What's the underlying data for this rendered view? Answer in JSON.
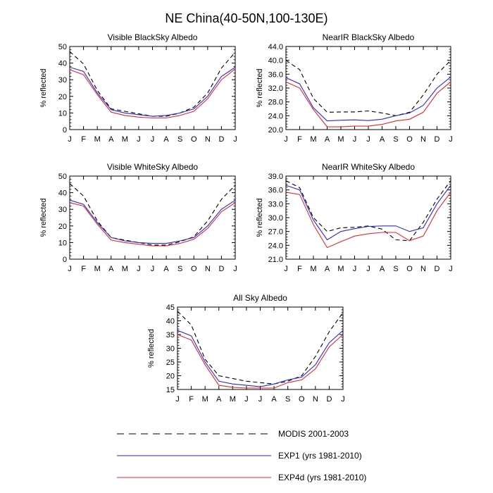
{
  "figure": {
    "title": "NE China(40-50N,100-130E)"
  },
  "legend": [
    {
      "name": "MODIS 2001-2003",
      "color": "#000000",
      "dash": "dashed"
    },
    {
      "name": "EXP1 (yrs 1981-2010)",
      "color": "#2a2ad4",
      "dash": "solid"
    },
    {
      "name": "EXP4d (yrs 1981-2010)",
      "color": "#e8262a",
      "dash": "solid"
    }
  ],
  "chart_data": [
    {
      "type": "line",
      "title": "Visible BlackSky Albedo",
      "ylabel": "% reflected",
      "categories": [
        "J",
        "F",
        "M",
        "A",
        "M",
        "J",
        "J",
        "A",
        "S",
        "O",
        "N",
        "D",
        "J"
      ],
      "ylim": [
        0,
        50
      ],
      "yticks": [
        "0",
        "10",
        "20",
        "30",
        "40",
        "50"
      ],
      "series": [
        {
          "name": "MODIS 2001-2003",
          "values": [
            47.0,
            39.5,
            23.5,
            12.5,
            11.0,
            9.5,
            8.0,
            8.0,
            10.0,
            13.5,
            22.0,
            37.0,
            46.5
          ]
        },
        {
          "name": "EXP1 (yrs 1981-2010)",
          "values": [
            37.5,
            35.0,
            22.0,
            12.0,
            10.0,
            9.0,
            8.0,
            8.5,
            10.0,
            12.5,
            20.0,
            32.0,
            37.5
          ]
        },
        {
          "name": "EXP4d (yrs 1981-2010)",
          "values": [
            36.0,
            33.0,
            21.0,
            10.5,
            8.5,
            7.5,
            7.0,
            7.0,
            8.5,
            11.0,
            18.5,
            30.0,
            36.5
          ]
        }
      ]
    },
    {
      "type": "line",
      "title": "NearIR BlackSky Albedo",
      "ylabel": "% reflected",
      "categories": [
        "J",
        "F",
        "M",
        "A",
        "M",
        "J",
        "J",
        "A",
        "S",
        "O",
        "N",
        "D",
        "J"
      ],
      "ylim": [
        20,
        44
      ],
      "yticks": [
        "20.0",
        "24.0",
        "28.0",
        "32.0",
        "36.0",
        "40.0",
        "44.0"
      ],
      "series": [
        {
          "name": "MODIS 2001-2003",
          "values": [
            40.0,
            37.3,
            29.0,
            25.0,
            25.1,
            25.1,
            25.4,
            24.8,
            24.0,
            25.0,
            30.0,
            36.0,
            40.0
          ]
        },
        {
          "name": "EXP1 (yrs 1981-2010)",
          "values": [
            35.0,
            33.2,
            26.3,
            22.5,
            22.7,
            22.8,
            22.6,
            23.0,
            24.0,
            24.8,
            27.0,
            32.0,
            35.2
          ]
        },
        {
          "name": "EXP4d (yrs 1981-2010)",
          "values": [
            33.8,
            32.0,
            25.8,
            20.8,
            20.8,
            21.0,
            21.0,
            21.5,
            22.5,
            23.0,
            25.0,
            30.5,
            33.8
          ]
        }
      ]
    },
    {
      "type": "line",
      "title": "Visible WhiteSky Albedo",
      "ylabel": "% reflected",
      "categories": [
        "J",
        "F",
        "M",
        "A",
        "M",
        "J",
        "J",
        "A",
        "S",
        "O",
        "N",
        "D",
        "J"
      ],
      "ylim": [
        0,
        50
      ],
      "yticks": [
        "0",
        "10",
        "20",
        "30",
        "40",
        "50"
      ],
      "series": [
        {
          "name": "MODIS 2001-2003",
          "values": [
            45.5,
            38.0,
            23.0,
            13.0,
            11.5,
            10.0,
            8.5,
            8.5,
            10.5,
            13.5,
            23.0,
            36.0,
            44.5
          ]
        },
        {
          "name": "EXP1 (yrs 1981-2010)",
          "values": [
            35.5,
            33.0,
            22.0,
            13.0,
            11.0,
            10.0,
            9.5,
            9.5,
            11.0,
            13.0,
            20.0,
            30.0,
            35.5
          ]
        },
        {
          "name": "EXP4d (yrs 1981-2010)",
          "values": [
            34.0,
            32.0,
            21.0,
            11.5,
            10.0,
            9.0,
            8.0,
            8.0,
            9.5,
            12.0,
            18.5,
            28.5,
            34.0
          ]
        }
      ]
    },
    {
      "type": "line",
      "title": "NearIR WhiteSky Albedo",
      "ylabel": "% reflected",
      "categories": [
        "J",
        "F",
        "M",
        "A",
        "M",
        "J",
        "J",
        "A",
        "S",
        "O",
        "N",
        "D",
        "J"
      ],
      "ylim": [
        21,
        39
      ],
      "yticks": [
        "21.0",
        "24.0",
        "27.0",
        "30.0",
        "33.0",
        "36.0",
        "39.0"
      ],
      "series": [
        {
          "name": "MODIS 2001-2003",
          "values": [
            38.0,
            36.5,
            30.0,
            27.0,
            27.8,
            27.9,
            28.2,
            27.5,
            25.2,
            25.0,
            29.0,
            34.0,
            38.0
          ]
        },
        {
          "name": "EXP1 (yrs 1981-2010)",
          "values": [
            37.0,
            36.0,
            29.5,
            25.2,
            27.0,
            27.6,
            28.1,
            28.2,
            28.2,
            27.0,
            27.8,
            33.0,
            37.0
          ]
        },
        {
          "name": "EXP4d (yrs 1981-2010)",
          "values": [
            35.5,
            35.0,
            28.5,
            23.5,
            24.8,
            26.0,
            26.5,
            26.8,
            26.8,
            25.0,
            26.0,
            31.5,
            35.5
          ]
        }
      ]
    },
    {
      "type": "line",
      "title": "All Sky Albedo",
      "ylabel": "% reflected",
      "categories": [
        "J",
        "F",
        "M",
        "A",
        "M",
        "J",
        "J",
        "A",
        "S",
        "O",
        "N",
        "D",
        "J"
      ],
      "ylim": [
        15,
        45
      ],
      "yticks": [
        "15",
        "20",
        "25",
        "30",
        "35",
        "40",
        "45"
      ],
      "series": [
        {
          "name": "MODIS 2001-2003",
          "values": [
            43.5,
            38.5,
            26.0,
            20.0,
            19.0,
            18.0,
            17.5,
            17.0,
            18.0,
            20.0,
            27.0,
            36.0,
            43.0
          ]
        },
        {
          "name": "EXP1 (yrs 1981-2010)",
          "values": [
            36.5,
            34.5,
            25.0,
            18.0,
            17.0,
            16.5,
            16.0,
            17.0,
            18.5,
            19.5,
            24.0,
            32.0,
            36.5
          ]
        },
        {
          "name": "EXP4d (yrs 1981-2010)",
          "values": [
            35.0,
            33.0,
            24.0,
            16.5,
            15.8,
            15.5,
            15.5,
            15.5,
            17.5,
            18.5,
            22.5,
            30.5,
            35.0
          ]
        }
      ]
    }
  ]
}
